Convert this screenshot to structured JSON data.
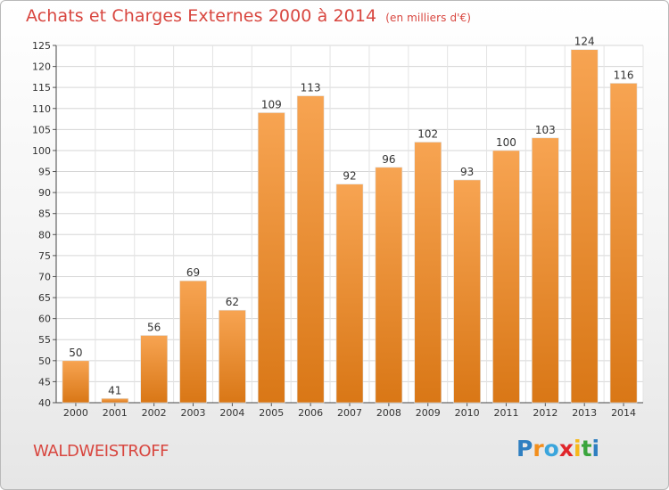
{
  "header": {
    "title": "Achats et Charges Externes 2000 à 2014",
    "unit": "(en milliers d'€)"
  },
  "footer": {
    "place": "WALDWEISTROFF",
    "logo_letters": [
      "P",
      "r",
      "o",
      "x",
      "i",
      "t",
      "i"
    ],
    "logo_colors": [
      "#2f7fc1",
      "#f28e1c",
      "#3aa5dc",
      "#e0262b",
      "#f6b81a",
      "#3aa53d",
      "#2f7fc1"
    ]
  },
  "chart_data": {
    "type": "bar",
    "categories": [
      "2000",
      "2001",
      "2002",
      "2003",
      "2004",
      "2005",
      "2006",
      "2007",
      "2008",
      "2009",
      "2010",
      "2011",
      "2012",
      "2013",
      "2014"
    ],
    "values": [
      50,
      41,
      56,
      69,
      62,
      109,
      113,
      92,
      96,
      102,
      93,
      100,
      103,
      124,
      116
    ],
    "ylim": [
      40,
      125
    ],
    "yticks": [
      40,
      45,
      50,
      55,
      60,
      65,
      70,
      75,
      80,
      85,
      90,
      95,
      100,
      105,
      110,
      115,
      120,
      125
    ],
    "grid": true,
    "bar_color": "#f0902e"
  }
}
